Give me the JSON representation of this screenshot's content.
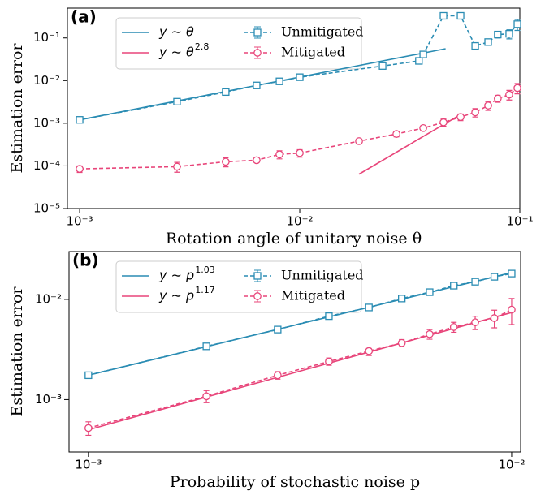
{
  "chart_data": [
    {
      "type": "line",
      "panel_label": "(a)",
      "xlabel": "Rotation angle of unitary noise θ",
      "ylabel": "Estimation error",
      "log_x": true,
      "log_y": true,
      "xlim": [
        0.00088,
        0.1
      ],
      "ylim": [
        1e-05,
        0.5
      ],
      "xticks": [
        {
          "value": 0.001,
          "label": "10⁻³"
        },
        {
          "value": 0.01,
          "label": "10⁻²"
        },
        {
          "value": 0.1,
          "label": "10⁻¹"
        }
      ],
      "yticks": [
        {
          "value": 1e-05,
          "label": "10⁻⁵"
        },
        {
          "value": 0.0001,
          "label": "10⁻⁴"
        },
        {
          "value": 0.001,
          "label": "10⁻³"
        },
        {
          "value": 0.01,
          "label": "10⁻²"
        },
        {
          "value": 0.1,
          "label": "10⁻¹"
        }
      ],
      "series": [
        {
          "name": "y ∼ θ",
          "color": "#2a8cb3",
          "style": "solid",
          "x": [
            0.001,
            0.046
          ],
          "values": [
            0.0012,
            0.056
          ]
        },
        {
          "name": "y ∼ θ",
          "exponent": "2.8",
          "color": "#e8457a",
          "style": "solid",
          "x": [
            0.0186,
            0.0538
          ],
          "values": [
            6.4e-05,
            0.0016
          ]
        },
        {
          "name": "Unmitigated",
          "color": "#2a8cb3",
          "style": "dashed",
          "marker": "square",
          "x": [
            0.001,
            0.00277,
            0.00461,
            0.00637,
            0.00809,
            0.01,
            0.0238,
            0.0348,
            0.0364,
            0.045,
            0.0538,
            0.0627,
            0.0718,
            0.0794,
            0.0895,
            0.0975
          ],
          "values": [
            0.0012,
            0.0032,
            0.0054,
            0.0077,
            0.0096,
            0.012,
            0.022,
            0.029,
            0.041,
            0.33,
            0.33,
            0.065,
            0.08,
            0.12,
            0.125,
            0.21
          ],
          "errors": [
            5e-05,
            0.0001,
            0.0002,
            0.0003,
            0.0004,
            0.0005,
            0.001,
            0.0015,
            0.003,
            0.02,
            0.02,
            0.006,
            0.008,
            0.02,
            0.03,
            0.06
          ]
        },
        {
          "name": "Mitigated",
          "color": "#e8457a",
          "style": "dashed",
          "marker": "circle",
          "x": [
            0.001,
            0.00277,
            0.00461,
            0.00637,
            0.00809,
            0.01,
            0.0186,
            0.0275,
            0.0364,
            0.045,
            0.0538,
            0.0627,
            0.0718,
            0.0794,
            0.0895,
            0.0975
          ],
          "values": [
            8.5e-05,
            9.6e-05,
            0.000125,
            0.000136,
            0.000186,
            0.0002,
            0.00038,
            0.00056,
            0.00077,
            0.00105,
            0.0014,
            0.0018,
            0.0026,
            0.0038,
            0.0047,
            0.0067
          ],
          "errors": [
            1.5e-05,
            2.5e-05,
            3e-05,
            1.5e-05,
            4e-05,
            4e-05,
            5e-05,
            8e-05,
            0.0001,
            0.0002,
            0.00025,
            0.0004,
            0.0006,
            0.0007,
            0.0012,
            0.0018
          ]
        }
      ]
    },
    {
      "type": "line",
      "panel_label": "(b)",
      "xlabel": "Probability of stochastic noise p",
      "ylabel": "Estimation error",
      "log_x": true,
      "log_y": true,
      "xlim": [
        0.0009,
        0.0105
      ],
      "ylim": [
        0.0003,
        0.03
      ],
      "xticks": [
        {
          "value": 0.001,
          "label": "10⁻³"
        },
        {
          "value": 0.01,
          "label": "10⁻²"
        }
      ],
      "yticks": [
        {
          "value": 0.001,
          "label": "10⁻³"
        },
        {
          "value": 0.01,
          "label": "10⁻²"
        }
      ],
      "series": [
        {
          "name": "y ∼ p",
          "exponent": "1.03",
          "color": "#2a8cb3",
          "style": "solid",
          "x": [
            0.001,
            0.01
          ],
          "values": [
            0.00175,
            0.0185
          ]
        },
        {
          "name": "y ∼ p",
          "exponent": "1.17",
          "color": "#e8457a",
          "style": "solid",
          "x": [
            0.001,
            0.01
          ],
          "values": [
            0.0005,
            0.0074
          ]
        },
        {
          "name": "Unmitigated",
          "color": "#2a8cb3",
          "style": "dashed",
          "marker": "square",
          "x": [
            0.001,
            0.0019,
            0.0028,
            0.0037,
            0.0046,
            0.0055,
            0.0064,
            0.0073,
            0.0082,
            0.0091,
            0.01
          ],
          "values": [
            0.00175,
            0.0034,
            0.005,
            0.0068,
            0.0083,
            0.0102,
            0.0118,
            0.0137,
            0.015,
            0.0168,
            0.0181
          ],
          "errors": [
            5e-05,
            0.0001,
            0.00015,
            0.0002,
            0.00025,
            0.0003,
            0.00035,
            0.0004,
            0.00045,
            0.0005,
            0.0006
          ]
        },
        {
          "name": "Mitigated",
          "color": "#e8457a",
          "style": "dashed",
          "marker": "circle",
          "x": [
            0.001,
            0.0019,
            0.0028,
            0.0037,
            0.0046,
            0.0055,
            0.0064,
            0.0073,
            0.0082,
            0.0091,
            0.01
          ],
          "values": [
            0.00052,
            0.00108,
            0.00175,
            0.0024,
            0.00305,
            0.00367,
            0.0045,
            0.0053,
            0.0059,
            0.0065,
            0.0079
          ],
          "errors": [
            8e-05,
            0.00015,
            0.00015,
            0.0002,
            0.0003,
            0.0003,
            0.0005,
            0.0006,
            0.0009,
            0.0013,
            0.0023
          ]
        }
      ]
    }
  ]
}
